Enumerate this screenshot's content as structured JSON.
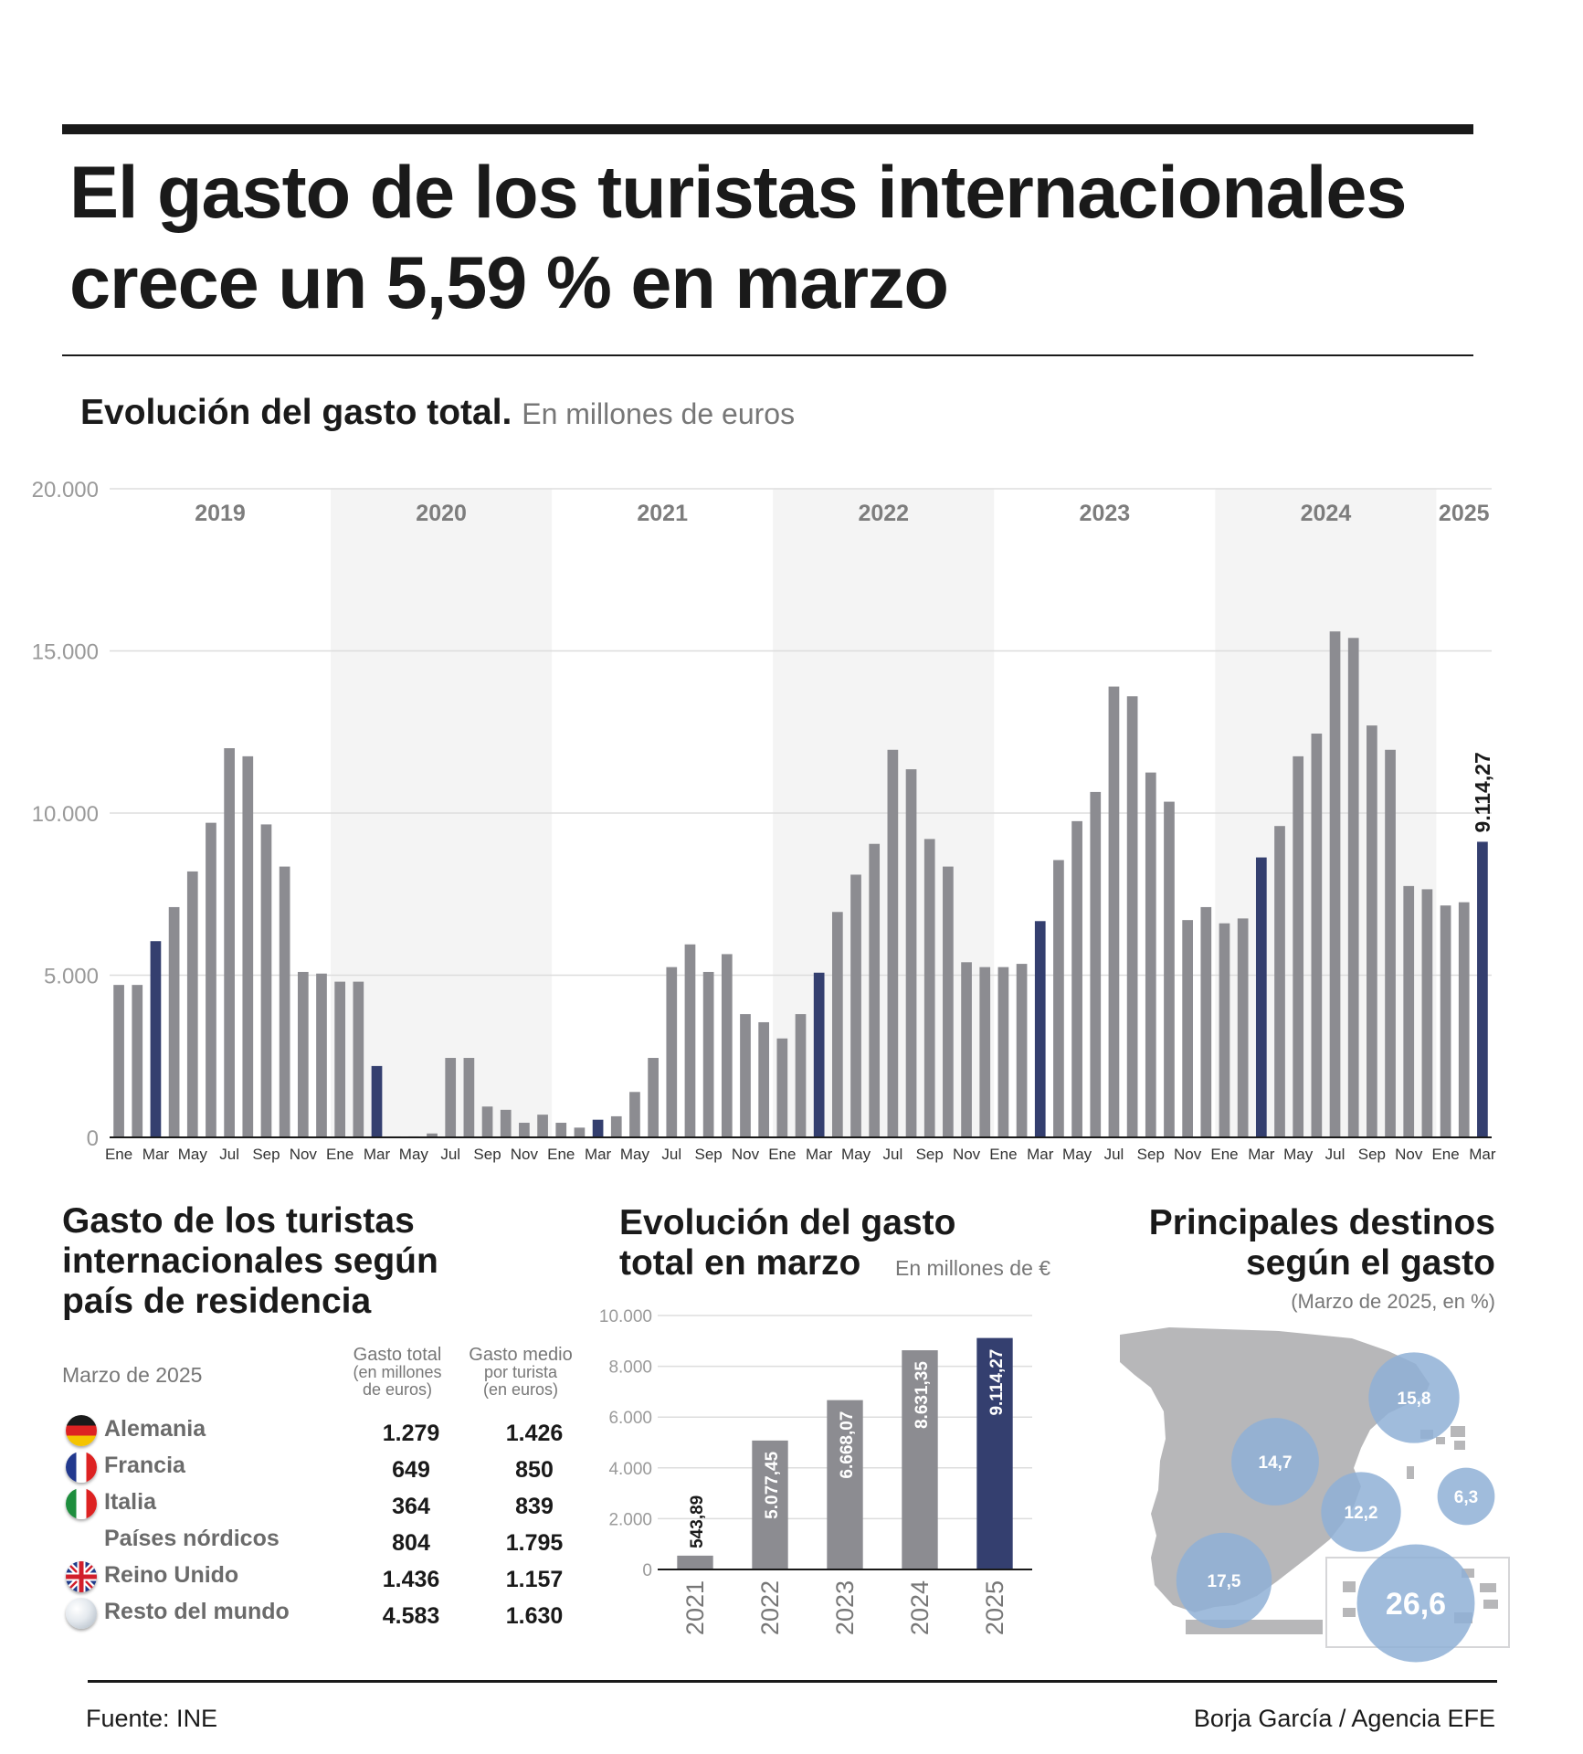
{
  "header": {
    "title_line1": "El gasto de los turistas internacionales",
    "title_line2": "crece un 5,59 % en marzo"
  },
  "main_section": {
    "title": "Evolución del gasto total.",
    "unit": "En millones de euros"
  },
  "colors": {
    "bar_default": "#8c8c91",
    "bar_highlight": "#343f6f",
    "year_band": "#f4f4f4",
    "grid": "#dddddd",
    "axis_text": "#9a9a9a",
    "bubble": "#8fb0d6",
    "map_land": "#b7b7b9"
  },
  "chart_data": [
    {
      "type": "bar",
      "title": "Evolución del gasto total.",
      "ylabel": "En millones de euros",
      "ylim": [
        0,
        20000
      ],
      "yticks": [
        0,
        5000,
        10000,
        15000,
        20000
      ],
      "ytick_labels": [
        "0",
        "5.000",
        "10.000",
        "15.000",
        "20.000"
      ],
      "years": [
        "2019",
        "2020",
        "2021",
        "2022",
        "2023",
        "2024",
        "2025"
      ],
      "month_labels": [
        "Ene",
        "Mar",
        "May",
        "Jul",
        "Sep",
        "Nov"
      ],
      "highlight_month": "Mar",
      "annotation": "9.114,27",
      "values": [
        4700,
        4700,
        6050,
        7100,
        8200,
        9700,
        12000,
        11750,
        9650,
        8350,
        5100,
        5050,
        4800,
        4800,
        2200,
        30,
        30,
        120,
        2450,
        2450,
        950,
        850,
        450,
        700,
        450,
        300,
        543.89,
        650,
        1400,
        2450,
        5250,
        5950,
        5100,
        5650,
        3800,
        3550,
        3050,
        3800,
        5077.45,
        6950,
        8100,
        9050,
        11950,
        11350,
        9200,
        8350,
        5400,
        5250,
        5250,
        5350,
        6668.07,
        8550,
        9750,
        10650,
        13900,
        13600,
        11250,
        10350,
        6700,
        7100,
        6600,
        6750,
        8631.35,
        9600,
        11750,
        12450,
        15600,
        15400,
        12700,
        11950,
        7750,
        7650,
        7150,
        7250,
        9114.27
      ]
    },
    {
      "type": "bar",
      "title": "Evolución del gasto total en marzo",
      "ylabel": "En millones de €",
      "ylim": [
        0,
        10000
      ],
      "yticks": [
        0,
        2000,
        4000,
        6000,
        8000,
        10000
      ],
      "ytick_labels": [
        "0",
        "2.000",
        "4.000",
        "6.000",
        "8.000",
        "10.000"
      ],
      "categories": [
        "2021",
        "2022",
        "2023",
        "2024",
        "2025"
      ],
      "values": [
        543.89,
        5077.45,
        6668.07,
        8631.35,
        9114.27
      ],
      "value_labels": [
        "543,89",
        "5.077,45",
        "6.668,07",
        "8.631,35",
        "9.114,27"
      ]
    },
    {
      "type": "table",
      "title": "Gasto de los turistas internacionales según país de residencia",
      "date": "Marzo de 2025",
      "columns": [
        {
          "label": "Gasto total",
          "sub1": "(en millones",
          "sub2": "de euros)"
        },
        {
          "label": "Gasto medio",
          "sub1": "por turista",
          "sub2": "(en euros)"
        }
      ],
      "rows": [
        {
          "country": "Alemania",
          "flag": "germany-flag-icon",
          "total": "1.279",
          "avg": "1.426"
        },
        {
          "country": "Francia",
          "flag": "france-flag-icon",
          "total": "649",
          "avg": "850"
        },
        {
          "country": "Italia",
          "flag": "italy-flag-icon",
          "total": "364",
          "avg": "839"
        },
        {
          "country": "Países nórdicos",
          "flag": "",
          "total": "804",
          "avg": "1.795"
        },
        {
          "country": "Reino Unido",
          "flag": "uk-flag-icon",
          "total": "1.436",
          "avg": "1.157"
        },
        {
          "country": "Resto del mundo",
          "flag": "globe-icon",
          "total": "4.583",
          "avg": "1.630"
        }
      ]
    },
    {
      "type": "bubble-map",
      "title": "Principales destinos según el gasto",
      "subtitle": "(Marzo de 2025, en %)",
      "regions": [
        {
          "label": "15,8",
          "value": 15.8
        },
        {
          "label": "14,7",
          "value": 14.7
        },
        {
          "label": "12,2",
          "value": 12.2
        },
        {
          "label": "6,3",
          "value": 6.3
        },
        {
          "label": "17,5",
          "value": 17.5
        },
        {
          "label": "26,6",
          "value": 26.6
        }
      ]
    }
  ],
  "countries_section": {
    "title_l1": "Gasto de los turistas",
    "title_l2": "internacionales según",
    "title_l3": "país de residencia"
  },
  "march_section": {
    "title_l1": "Evolución del gasto",
    "title_l2": "total en marzo",
    "unit": "En millones de €"
  },
  "destinations_section": {
    "title_l1": "Principales destinos",
    "title_l2": "según el gasto",
    "subtitle": "(Marzo de 2025, en %)"
  },
  "footer": {
    "source": "Fuente: INE",
    "credit": "Borja García / Agencia EFE"
  }
}
